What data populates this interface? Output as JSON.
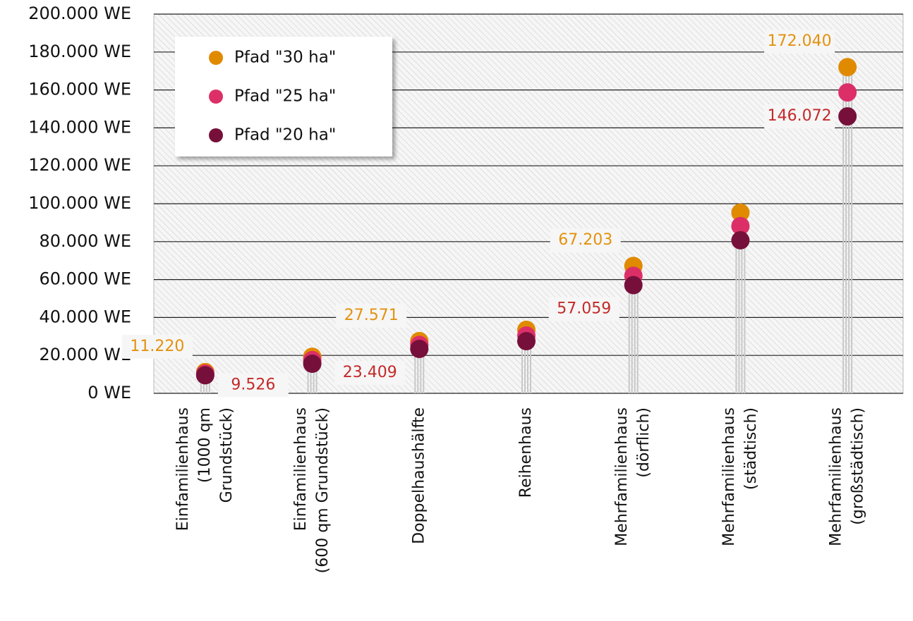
{
  "chart_data": {
    "type": "dot",
    "categories": [
      "Einfamilienhaus\n(1000 qm\nGrundstück)",
      "Einfamilienhaus\n(600 qm Grundstück)",
      "Doppelhaushälfte",
      "Reihenhaus",
      "Mehrfamilienhaus\n(dörflich)",
      "Mehrfamilienhaus\n(städtisch)",
      "Mehrfamilienhaus\n(großstädtisch)"
    ],
    "series": [
      {
        "name": "Pfad \"30 ha\"",
        "color": "#e08a00",
        "label_color": "#e3920f",
        "values": [
          11220,
          19300,
          27571,
          33500,
          67203,
          95300,
          172040
        ],
        "value_labels": [
          "11.220",
          null,
          "27.571",
          null,
          "67.203",
          null,
          "172.040"
        ]
      },
      {
        "name": "Pfad \"25 ha\"",
        "color": "#dc2f68",
        "values": [
          10400,
          17500,
          25500,
          30500,
          62000,
          88200,
          158700
        ]
      },
      {
        "name": "Pfad \"20 ha\"",
        "color": "#76103a",
        "label_color": "#c42a2a",
        "values": [
          9526,
          15600,
          23409,
          27500,
          57059,
          80700,
          146072
        ],
        "value_labels": [
          "9.526",
          null,
          "23.409",
          null,
          "57.059",
          null,
          "146.072"
        ]
      }
    ],
    "ylim": [
      0,
      200000
    ],
    "yticks": [
      {
        "value": 0,
        "label": "0 WE"
      },
      {
        "value": 20000,
        "label": "20.000 WE"
      },
      {
        "value": 40000,
        "label": "40.000 WE"
      },
      {
        "value": 60000,
        "label": "60.000 WE"
      },
      {
        "value": 80000,
        "label": "80.000 WE"
      },
      {
        "value": 100000,
        "label": "100.000 WE"
      },
      {
        "value": 120000,
        "label": "120.000 WE"
      },
      {
        "value": 140000,
        "label": "140.000 WE"
      },
      {
        "value": 160000,
        "label": "160.000 WE"
      },
      {
        "value": 180000,
        "label": "180.000 WE"
      },
      {
        "value": 200000,
        "label": "200.000 WE"
      }
    ],
    "grid": true,
    "legend": "upper left"
  }
}
